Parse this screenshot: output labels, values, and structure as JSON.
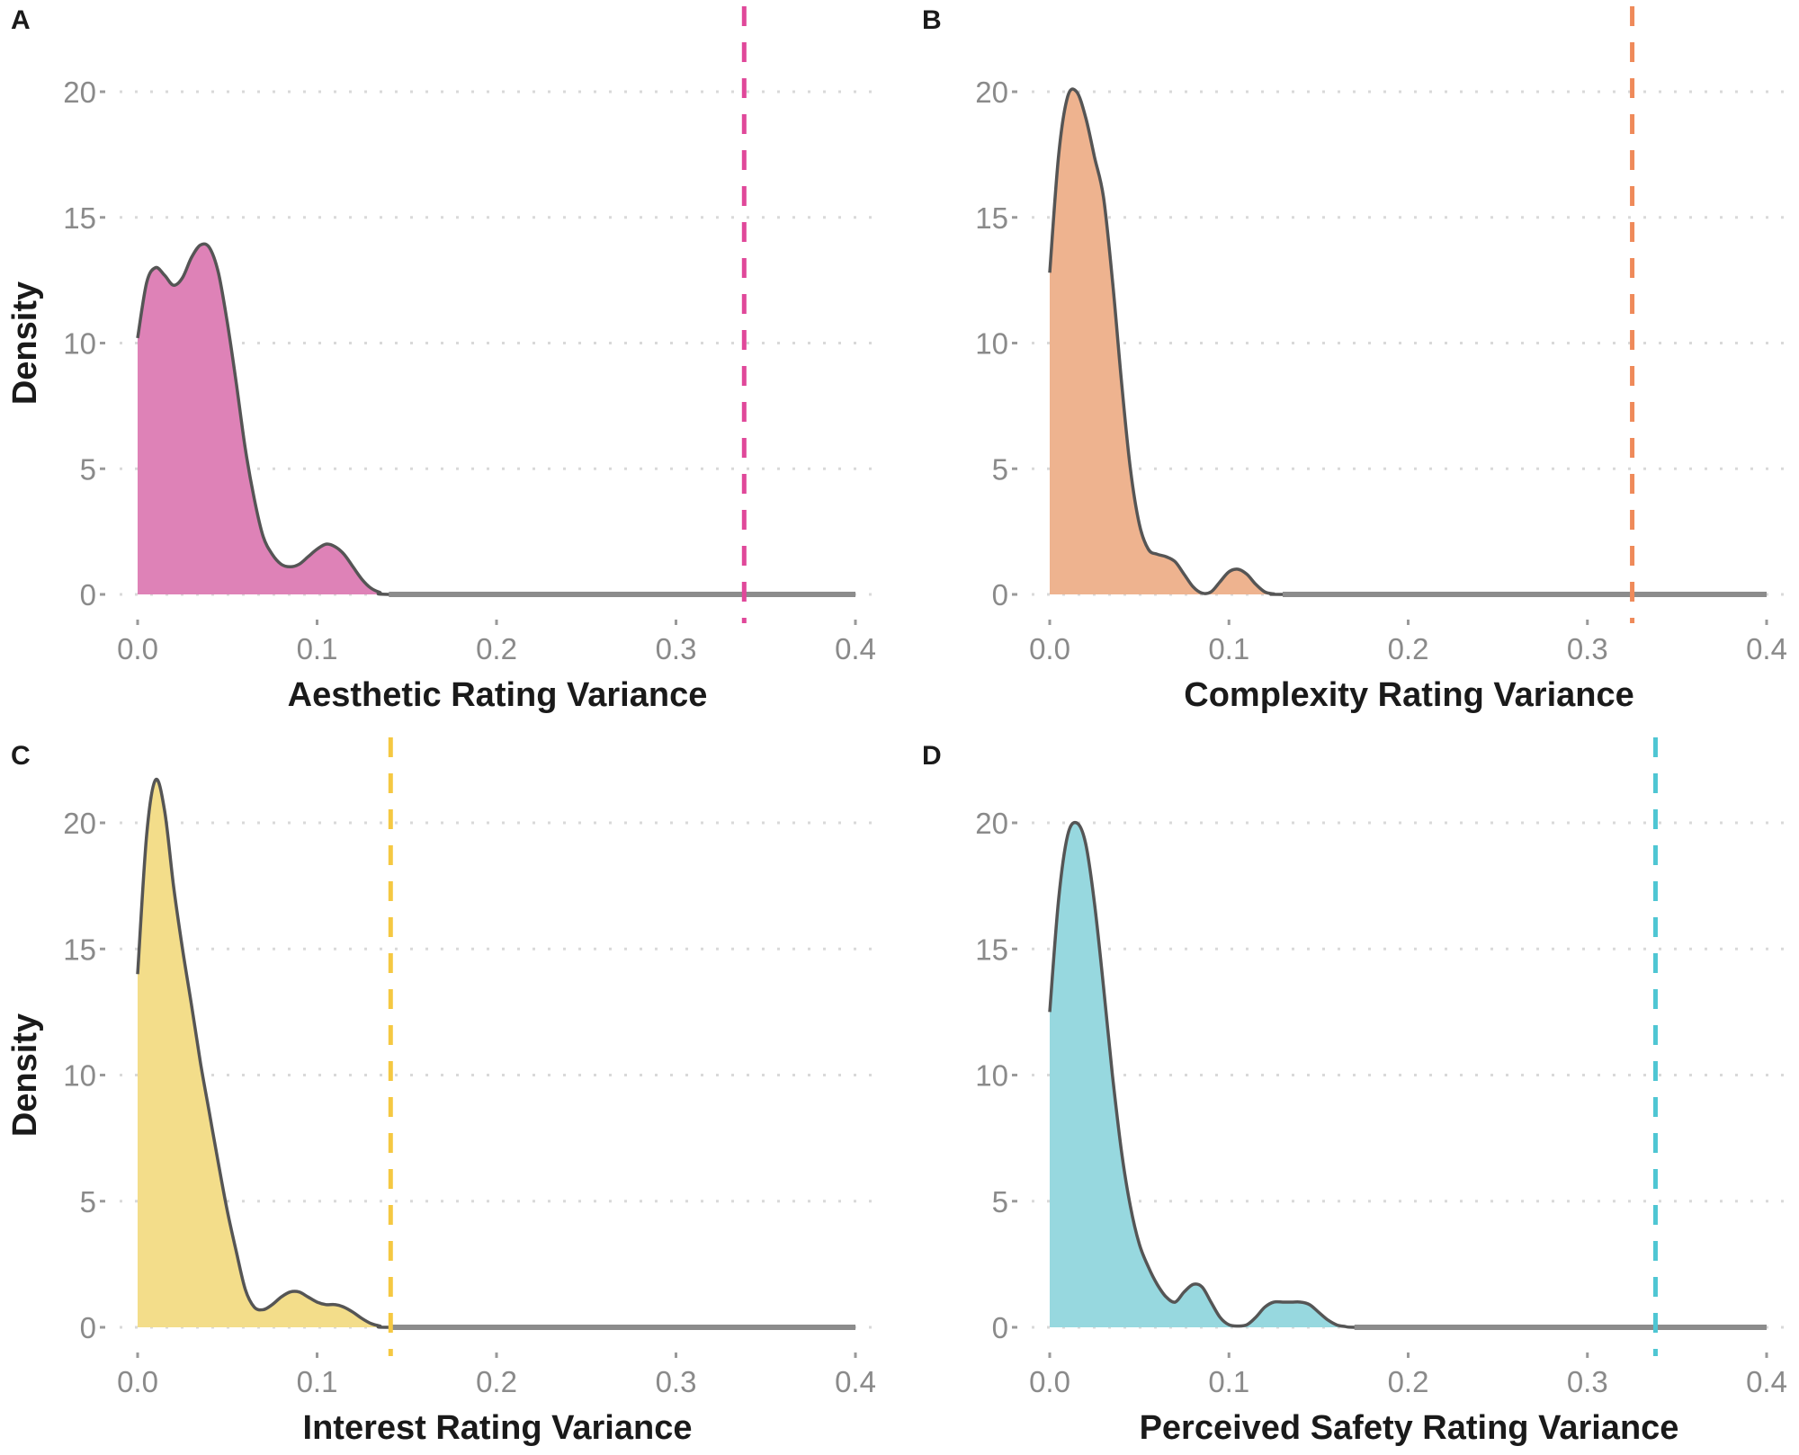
{
  "chart_data": [
    {
      "panel": "A",
      "type": "area",
      "subtype": "density",
      "xlabel": "Aesthetic Rating Variance",
      "ylabel": "Density",
      "xlim": [
        0,
        0.4
      ],
      "ylim": [
        0,
        21
      ],
      "x_ticks": [
        "0.0",
        "0.1",
        "0.2",
        "0.3",
        "0.4"
      ],
      "x_tick_values": [
        0,
        0.1,
        0.2,
        0.3,
        0.4
      ],
      "y_ticks": [
        "0",
        "5",
        "10",
        "15",
        "20"
      ],
      "y_tick_values": [
        0,
        5,
        10,
        15,
        20
      ],
      "grid": "horizontal-dotted",
      "fill_color": "#de82b7",
      "line_color": "#555555",
      "reference_line": {
        "x": 0.338,
        "color": "#e0489a",
        "style": "dashed"
      },
      "x": [
        0,
        0.005,
        0.01,
        0.015,
        0.02,
        0.025,
        0.03,
        0.035,
        0.04,
        0.045,
        0.05,
        0.055,
        0.06,
        0.065,
        0.07,
        0.075,
        0.08,
        0.085,
        0.09,
        0.095,
        0.1,
        0.105,
        0.11,
        0.115,
        0.12,
        0.125,
        0.13,
        0.135,
        0.14,
        0.2,
        0.3,
        0.4
      ],
      "values": [
        10.2,
        12.4,
        13.0,
        12.7,
        12.3,
        12.6,
        13.4,
        13.9,
        13.8,
        12.8,
        10.8,
        8.4,
        5.8,
        3.8,
        2.3,
        1.6,
        1.2,
        1.1,
        1.2,
        1.5,
        1.8,
        2.0,
        1.9,
        1.6,
        1.1,
        0.6,
        0.25,
        0.08,
        0,
        0,
        0,
        0
      ]
    },
    {
      "panel": "B",
      "type": "area",
      "subtype": "density",
      "xlabel": "Complexity Rating Variance",
      "ylabel": "",
      "xlim": [
        0,
        0.4
      ],
      "ylim": [
        0,
        21
      ],
      "x_ticks": [
        "0.0",
        "0.1",
        "0.2",
        "0.3",
        "0.4"
      ],
      "x_tick_values": [
        0,
        0.1,
        0.2,
        0.3,
        0.4
      ],
      "y_ticks": [
        "0",
        "5",
        "10",
        "15",
        "20"
      ],
      "y_tick_values": [
        0,
        5,
        10,
        15,
        20
      ],
      "grid": "horizontal-dotted",
      "fill_color": "#eeb38f",
      "line_color": "#555555",
      "reference_line": {
        "x": 0.325,
        "color": "#ef8a5a",
        "style": "dashed"
      },
      "x": [
        0,
        0.005,
        0.01,
        0.015,
        0.02,
        0.025,
        0.03,
        0.035,
        0.04,
        0.045,
        0.05,
        0.055,
        0.06,
        0.065,
        0.07,
        0.075,
        0.08,
        0.085,
        0.09,
        0.095,
        0.1,
        0.105,
        0.11,
        0.115,
        0.12,
        0.125,
        0.13,
        0.2,
        0.3,
        0.4
      ],
      "values": [
        12.8,
        17.5,
        19.8,
        20.0,
        19.0,
        17.4,
        15.8,
        12.5,
        8.5,
        5.0,
        2.8,
        1.8,
        1.6,
        1.5,
        1.3,
        0.8,
        0.3,
        0.05,
        0.1,
        0.5,
        0.9,
        1.0,
        0.8,
        0.4,
        0.1,
        0.02,
        0,
        0,
        0,
        0
      ]
    },
    {
      "panel": "C",
      "type": "area",
      "subtype": "density",
      "xlabel": "Interest Rating Variance",
      "ylabel": "Density",
      "xlim": [
        0,
        0.4
      ],
      "ylim": [
        0,
        21
      ],
      "x_ticks": [
        "0.0",
        "0.1",
        "0.2",
        "0.3",
        "0.4"
      ],
      "x_tick_values": [
        0,
        0.1,
        0.2,
        0.3,
        0.4
      ],
      "y_ticks": [
        "0",
        "5",
        "10",
        "15",
        "20"
      ],
      "y_tick_values": [
        0,
        5,
        10,
        15,
        20
      ],
      "grid": "horizontal-dotted",
      "fill_color": "#f3dd8a",
      "line_color": "#555555",
      "reference_line": {
        "x": 0.141,
        "color": "#f5c842",
        "style": "dashed"
      },
      "x": [
        0,
        0.005,
        0.01,
        0.015,
        0.02,
        0.025,
        0.03,
        0.035,
        0.04,
        0.045,
        0.05,
        0.055,
        0.06,
        0.065,
        0.07,
        0.075,
        0.08,
        0.085,
        0.09,
        0.095,
        0.1,
        0.105,
        0.11,
        0.115,
        0.12,
        0.125,
        0.13,
        0.135,
        0.14,
        0.2,
        0.3,
        0.4
      ],
      "values": [
        14.0,
        19.5,
        21.7,
        20.5,
        17.5,
        15.0,
        12.8,
        10.5,
        8.5,
        6.5,
        4.6,
        3.0,
        1.5,
        0.8,
        0.7,
        0.9,
        1.2,
        1.4,
        1.4,
        1.2,
        1.0,
        0.9,
        0.9,
        0.8,
        0.6,
        0.35,
        0.15,
        0.05,
        0,
        0,
        0,
        0
      ]
    },
    {
      "panel": "D",
      "type": "area",
      "subtype": "density",
      "xlabel": "Perceived Safety Rating Variance",
      "ylabel": "",
      "xlim": [
        0,
        0.4
      ],
      "ylim": [
        0,
        21
      ],
      "x_ticks": [
        "0.0",
        "0.1",
        "0.2",
        "0.3",
        "0.4"
      ],
      "x_tick_values": [
        0,
        0.1,
        0.2,
        0.3,
        0.4
      ],
      "y_ticks": [
        "0",
        "5",
        "10",
        "15",
        "20"
      ],
      "y_tick_values": [
        0,
        5,
        10,
        15,
        20
      ],
      "grid": "horizontal-dotted",
      "fill_color": "#97d8df",
      "line_color": "#555555",
      "reference_line": {
        "x": 0.338,
        "color": "#4fc6d3",
        "style": "dashed"
      },
      "x": [
        0,
        0.005,
        0.01,
        0.015,
        0.02,
        0.025,
        0.03,
        0.035,
        0.04,
        0.045,
        0.05,
        0.055,
        0.06,
        0.065,
        0.07,
        0.075,
        0.08,
        0.085,
        0.09,
        0.095,
        0.1,
        0.105,
        0.11,
        0.115,
        0.12,
        0.125,
        0.13,
        0.135,
        0.14,
        0.145,
        0.15,
        0.155,
        0.16,
        0.165,
        0.17,
        0.2,
        0.3,
        0.4
      ],
      "values": [
        12.5,
        17.0,
        19.5,
        20.0,
        19.2,
        16.8,
        13.5,
        10.0,
        7.0,
        4.8,
        3.3,
        2.4,
        1.7,
        1.2,
        1.0,
        1.4,
        1.7,
        1.6,
        1.0,
        0.4,
        0.1,
        0.05,
        0.1,
        0.4,
        0.8,
        1.0,
        1.0,
        1.0,
        1.0,
        0.9,
        0.6,
        0.3,
        0.1,
        0.03,
        0,
        0,
        0,
        0
      ]
    }
  ]
}
